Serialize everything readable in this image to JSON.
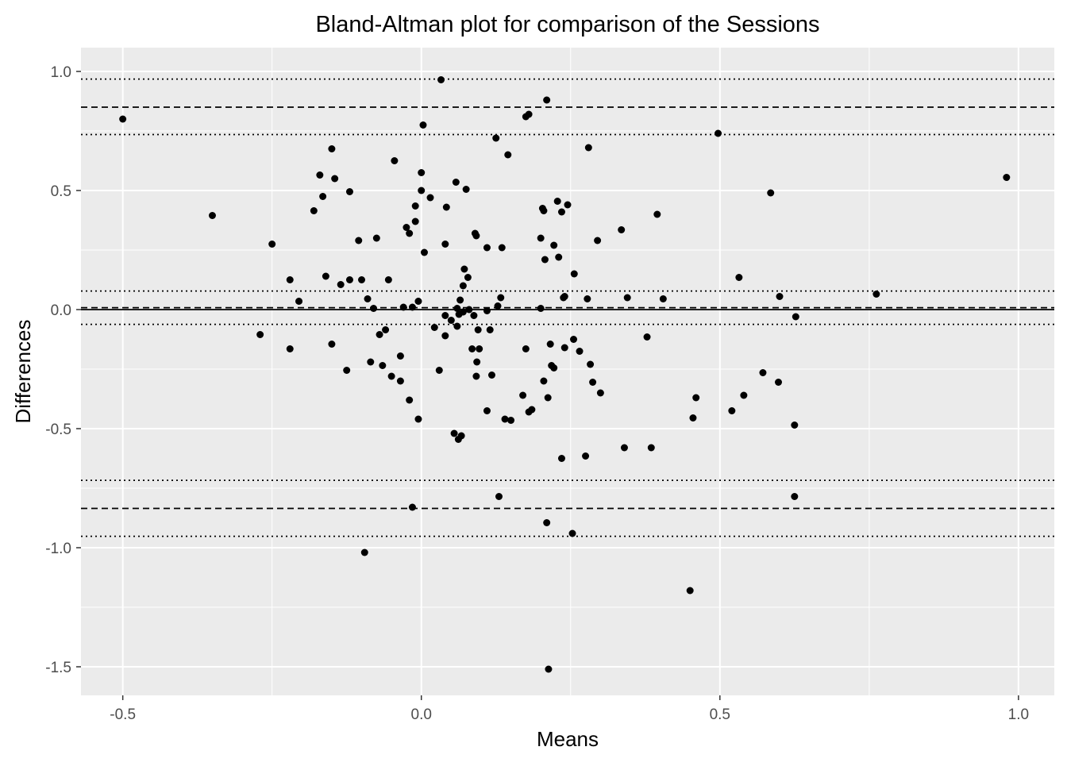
{
  "chart_data": {
    "type": "scatter",
    "title": "Bland-Altman plot for comparison of the Sessions",
    "xlabel": "Means",
    "ylabel": "Differences",
    "xlim": [
      -0.57,
      1.06
    ],
    "ylim": [
      -1.62,
      1.1
    ],
    "x_ticks": [
      -0.5,
      0.0,
      0.5,
      1.0
    ],
    "x_tick_labels": [
      "-0.5",
      "0.0",
      "0.5",
      "1.0"
    ],
    "y_ticks": [
      1.0,
      0.5,
      0.0,
      -0.5,
      -1.0,
      -1.5
    ],
    "y_tick_labels": [
      "1.0",
      "0.5",
      "0.0",
      "-0.5",
      "-1.0",
      "-1.5"
    ],
    "background": "#ebebeb",
    "grid": true,
    "grid_color": "#ffffff",
    "point_color": "#000000",
    "reference_lines": [
      {
        "y": 0.0,
        "style": "solid"
      },
      {
        "y": 0.008,
        "style": "dashed"
      },
      {
        "y": 0.078,
        "style": "dotted"
      },
      {
        "y": -0.062,
        "style": "dotted"
      },
      {
        "y": 0.85,
        "style": "dashed"
      },
      {
        "y": 0.968,
        "style": "dotted"
      },
      {
        "y": 0.735,
        "style": "dotted"
      },
      {
        "y": -0.835,
        "style": "dashed"
      },
      {
        "y": -0.717,
        "style": "dotted"
      },
      {
        "y": -0.952,
        "style": "dotted"
      }
    ],
    "points": [
      [
        -0.5,
        0.8
      ],
      [
        -0.35,
        0.395
      ],
      [
        -0.25,
        0.275
      ],
      [
        -0.27,
        -0.105
      ],
      [
        -0.22,
        -0.165
      ],
      [
        -0.22,
        0.125
      ],
      [
        -0.205,
        0.035
      ],
      [
        -0.18,
        0.415
      ],
      [
        -0.17,
        0.565
      ],
      [
        -0.165,
        0.475
      ],
      [
        -0.16,
        0.14
      ],
      [
        -0.15,
        0.675
      ],
      [
        -0.15,
        -0.145
      ],
      [
        -0.145,
        0.55
      ],
      [
        -0.135,
        0.105
      ],
      [
        -0.125,
        -0.255
      ],
      [
        -0.12,
        0.125
      ],
      [
        -0.12,
        0.495
      ],
      [
        -0.105,
        0.29
      ],
      [
        -0.1,
        0.125
      ],
      [
        -0.095,
        -1.02
      ],
      [
        -0.09,
        0.045
      ],
      [
        -0.085,
        -0.22
      ],
      [
        -0.08,
        0.005
      ],
      [
        -0.075,
        0.3
      ],
      [
        -0.07,
        -0.105
      ],
      [
        -0.065,
        -0.235
      ],
      [
        -0.06,
        -0.085
      ],
      [
        -0.055,
        0.125
      ],
      [
        -0.05,
        -0.28
      ],
      [
        -0.045,
        0.625
      ],
      [
        -0.035,
        -0.3
      ],
      [
        -0.035,
        -0.195
      ],
      [
        -0.03,
        0.01
      ],
      [
        -0.025,
        0.345
      ],
      [
        -0.02,
        0.32
      ],
      [
        -0.02,
        -0.38
      ],
      [
        -0.015,
        0.01
      ],
      [
        -0.015,
        -0.83
      ],
      [
        -0.01,
        0.37
      ],
      [
        -0.01,
        0.435
      ],
      [
        -0.005,
        0.035
      ],
      [
        -0.005,
        -0.46
      ],
      [
        0.0,
        0.575
      ],
      [
        0.0,
        0.5
      ],
      [
        0.003,
        0.775
      ],
      [
        0.005,
        0.24
      ],
      [
        0.015,
        0.47
      ],
      [
        0.022,
        -0.075
      ],
      [
        0.03,
        -0.255
      ],
      [
        0.033,
        0.965
      ],
      [
        0.04,
        -0.025
      ],
      [
        0.04,
        -0.11
      ],
      [
        0.04,
        0.275
      ],
      [
        0.042,
        0.43
      ],
      [
        0.05,
        -0.045
      ],
      [
        0.055,
        -0.52
      ],
      [
        0.058,
        0.535
      ],
      [
        0.06,
        -0.07
      ],
      [
        0.06,
        0.005
      ],
      [
        0.062,
        -0.545
      ],
      [
        0.063,
        -0.02
      ],
      [
        0.065,
        0.04
      ],
      [
        0.067,
        -0.53
      ],
      [
        0.07,
        -0.01
      ],
      [
        0.07,
        0.1
      ],
      [
        0.072,
        0.17
      ],
      [
        0.075,
        0.505
      ],
      [
        0.078,
        0.135
      ],
      [
        0.08,
        0.0
      ],
      [
        0.085,
        -0.165
      ],
      [
        0.088,
        -0.025
      ],
      [
        0.09,
        0.32
      ],
      [
        0.092,
        0.31
      ],
      [
        0.092,
        -0.28
      ],
      [
        0.093,
        -0.22
      ],
      [
        0.095,
        -0.085
      ],
      [
        0.097,
        -0.165
      ],
      [
        0.11,
        0.26
      ],
      [
        0.11,
        -0.425
      ],
      [
        0.11,
        -0.005
      ],
      [
        0.115,
        -0.085
      ],
      [
        0.118,
        -0.275
      ],
      [
        0.125,
        0.72
      ],
      [
        0.128,
        0.015
      ],
      [
        0.13,
        -0.785
      ],
      [
        0.133,
        0.05
      ],
      [
        0.135,
        0.26
      ],
      [
        0.14,
        -0.46
      ],
      [
        0.145,
        0.65
      ],
      [
        0.15,
        -0.465
      ],
      [
        0.17,
        -0.36
      ],
      [
        0.175,
        -0.165
      ],
      [
        0.175,
        0.81
      ],
      [
        0.18,
        0.82
      ],
      [
        0.18,
        -0.43
      ],
      [
        0.185,
        -0.42
      ],
      [
        0.2,
        0.3
      ],
      [
        0.2,
        0.005
      ],
      [
        0.203,
        0.425
      ],
      [
        0.205,
        0.415
      ],
      [
        0.205,
        -0.3
      ],
      [
        0.207,
        0.21
      ],
      [
        0.21,
        0.88
      ],
      [
        0.21,
        -0.895
      ],
      [
        0.212,
        -0.37
      ],
      [
        0.213,
        -1.51
      ],
      [
        0.216,
        -0.145
      ],
      [
        0.218,
        -0.235
      ],
      [
        0.222,
        -0.245
      ],
      [
        0.222,
        0.27
      ],
      [
        0.228,
        0.455
      ],
      [
        0.23,
        0.22
      ],
      [
        0.235,
        0.41
      ],
      [
        0.235,
        -0.625
      ],
      [
        0.238,
        0.05
      ],
      [
        0.24,
        -0.16
      ],
      [
        0.24,
        0.055
      ],
      [
        0.245,
        0.44
      ],
      [
        0.253,
        -0.94
      ],
      [
        0.255,
        -0.125
      ],
      [
        0.256,
        0.15
      ],
      [
        0.265,
        -0.175
      ],
      [
        0.275,
        -0.615
      ],
      [
        0.278,
        0.045
      ],
      [
        0.28,
        0.68
      ],
      [
        0.283,
        -0.23
      ],
      [
        0.287,
        -0.305
      ],
      [
        0.295,
        0.29
      ],
      [
        0.3,
        -0.35
      ],
      [
        0.335,
        0.335
      ],
      [
        0.34,
        -0.58
      ],
      [
        0.345,
        0.05
      ],
      [
        0.378,
        -0.115
      ],
      [
        0.385,
        -0.58
      ],
      [
        0.395,
        0.4
      ],
      [
        0.405,
        0.045
      ],
      [
        0.45,
        -1.18
      ],
      [
        0.455,
        -0.455
      ],
      [
        0.46,
        -0.37
      ],
      [
        0.497,
        0.74
      ],
      [
        0.52,
        -0.425
      ],
      [
        0.532,
        0.135
      ],
      [
        0.54,
        -0.36
      ],
      [
        0.572,
        -0.265
      ],
      [
        0.585,
        0.49
      ],
      [
        0.598,
        -0.305
      ],
      [
        0.6,
        0.055
      ],
      [
        0.625,
        -0.485
      ],
      [
        0.625,
        -0.785
      ],
      [
        0.627,
        -0.03
      ],
      [
        0.762,
        0.065
      ],
      [
        0.98,
        0.555
      ]
    ]
  }
}
